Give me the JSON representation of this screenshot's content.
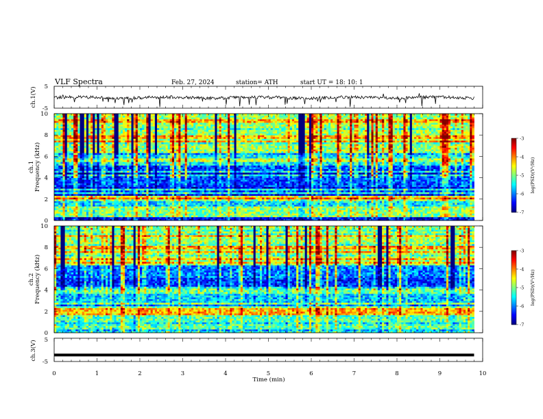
{
  "header": {
    "title": "VLF  Spectra",
    "date": "Feb. 27, 2024",
    "station": "station= ATH",
    "start_ut": "start  UT  =    18: 10: 1"
  },
  "chart_data": [
    {
      "type": "line",
      "panel": "ch1-waveform",
      "ylabel": "ch.1(V)",
      "ylim": [
        -5,
        5
      ],
      "yticks": [
        "5",
        "-5"
      ],
      "xlim": [
        0,
        10
      ],
      "x_extent_min": 9.8,
      "description_of_series": "noisy baseline near zero with occasional downward spikes",
      "series": [
        {
          "values_mean": -0.2,
          "values_min": -5,
          "values_max": 1.8
        }
      ]
    },
    {
      "type": "heatmap",
      "panel": "ch1-spectrogram",
      "ylabel_line1": "ch.1",
      "ylabel_line2": "Frequency  (kHz)",
      "ylim": [
        0,
        10
      ],
      "yticks": [
        "0",
        "2",
        "4",
        "6",
        "8",
        "10"
      ],
      "xlim": [
        0,
        10
      ],
      "x_extent_min": 9.8,
      "colorbar": {
        "label": "log(PSD)(V²/Hz)",
        "range": [
          -7,
          -3
        ],
        "ticks": [
          "-3",
          "-4",
          "-5",
          "-6",
          "-7"
        ]
      },
      "bands_khz": [
        {
          "from": 0.0,
          "to": 0.4,
          "level": -6.6
        },
        {
          "from": 0.4,
          "to": 1.2,
          "level": -5.0
        },
        {
          "from": 1.2,
          "to": 2.0,
          "level": -5.6
        },
        {
          "from": 2.0,
          "to": 2.4,
          "level": -4.6
        },
        {
          "from": 2.4,
          "to": 5.2,
          "level": -6.2
        },
        {
          "from": 5.2,
          "to": 6.4,
          "level": -5.5
        },
        {
          "from": 6.4,
          "to": 10.0,
          "level": -4.9
        }
      ]
    },
    {
      "type": "heatmap",
      "panel": "ch2-spectrogram",
      "ylabel_line1": "ch.2",
      "ylabel_line2": "Frequency  (kHz)",
      "ylim": [
        0,
        10
      ],
      "yticks": [
        "0",
        "2",
        "4",
        "6",
        "8",
        "10"
      ],
      "xlim": [
        0,
        10
      ],
      "x_extent_min": 9.8,
      "colorbar": {
        "label": "log(PSD)(V²/Hz)",
        "range": [
          -7,
          -3
        ],
        "ticks": [
          "-3",
          "-4",
          "-5",
          "-6",
          "-7"
        ]
      },
      "bands_khz": [
        {
          "from": 0.0,
          "to": 0.4,
          "level": -5.4
        },
        {
          "from": 0.4,
          "to": 1.6,
          "level": -5.2
        },
        {
          "from": 1.6,
          "to": 2.4,
          "level": -4.2
        },
        {
          "from": 2.4,
          "to": 3.6,
          "level": -5.7
        },
        {
          "from": 3.6,
          "to": 4.2,
          "level": -5.1
        },
        {
          "from": 4.2,
          "to": 5.2,
          "level": -6.3
        },
        {
          "from": 5.2,
          "to": 6.4,
          "level": -6.0
        },
        {
          "from": 6.4,
          "to": 10.0,
          "level": -4.9
        }
      ]
    },
    {
      "type": "line",
      "panel": "ch3-waveform",
      "ylabel": "ch.3(V)",
      "ylim": [
        -5,
        5
      ],
      "yticks": [
        "5",
        "-5"
      ],
      "xlim": [
        0,
        10
      ],
      "x_extent_min": 9.8,
      "series": [
        {
          "values_mean": -2.2
        }
      ]
    }
  ],
  "x_axis": {
    "label": "Time  (min)",
    "ticks": [
      "0",
      "1",
      "2",
      "3",
      "4",
      "5",
      "6",
      "7",
      "8",
      "9",
      "10"
    ]
  }
}
